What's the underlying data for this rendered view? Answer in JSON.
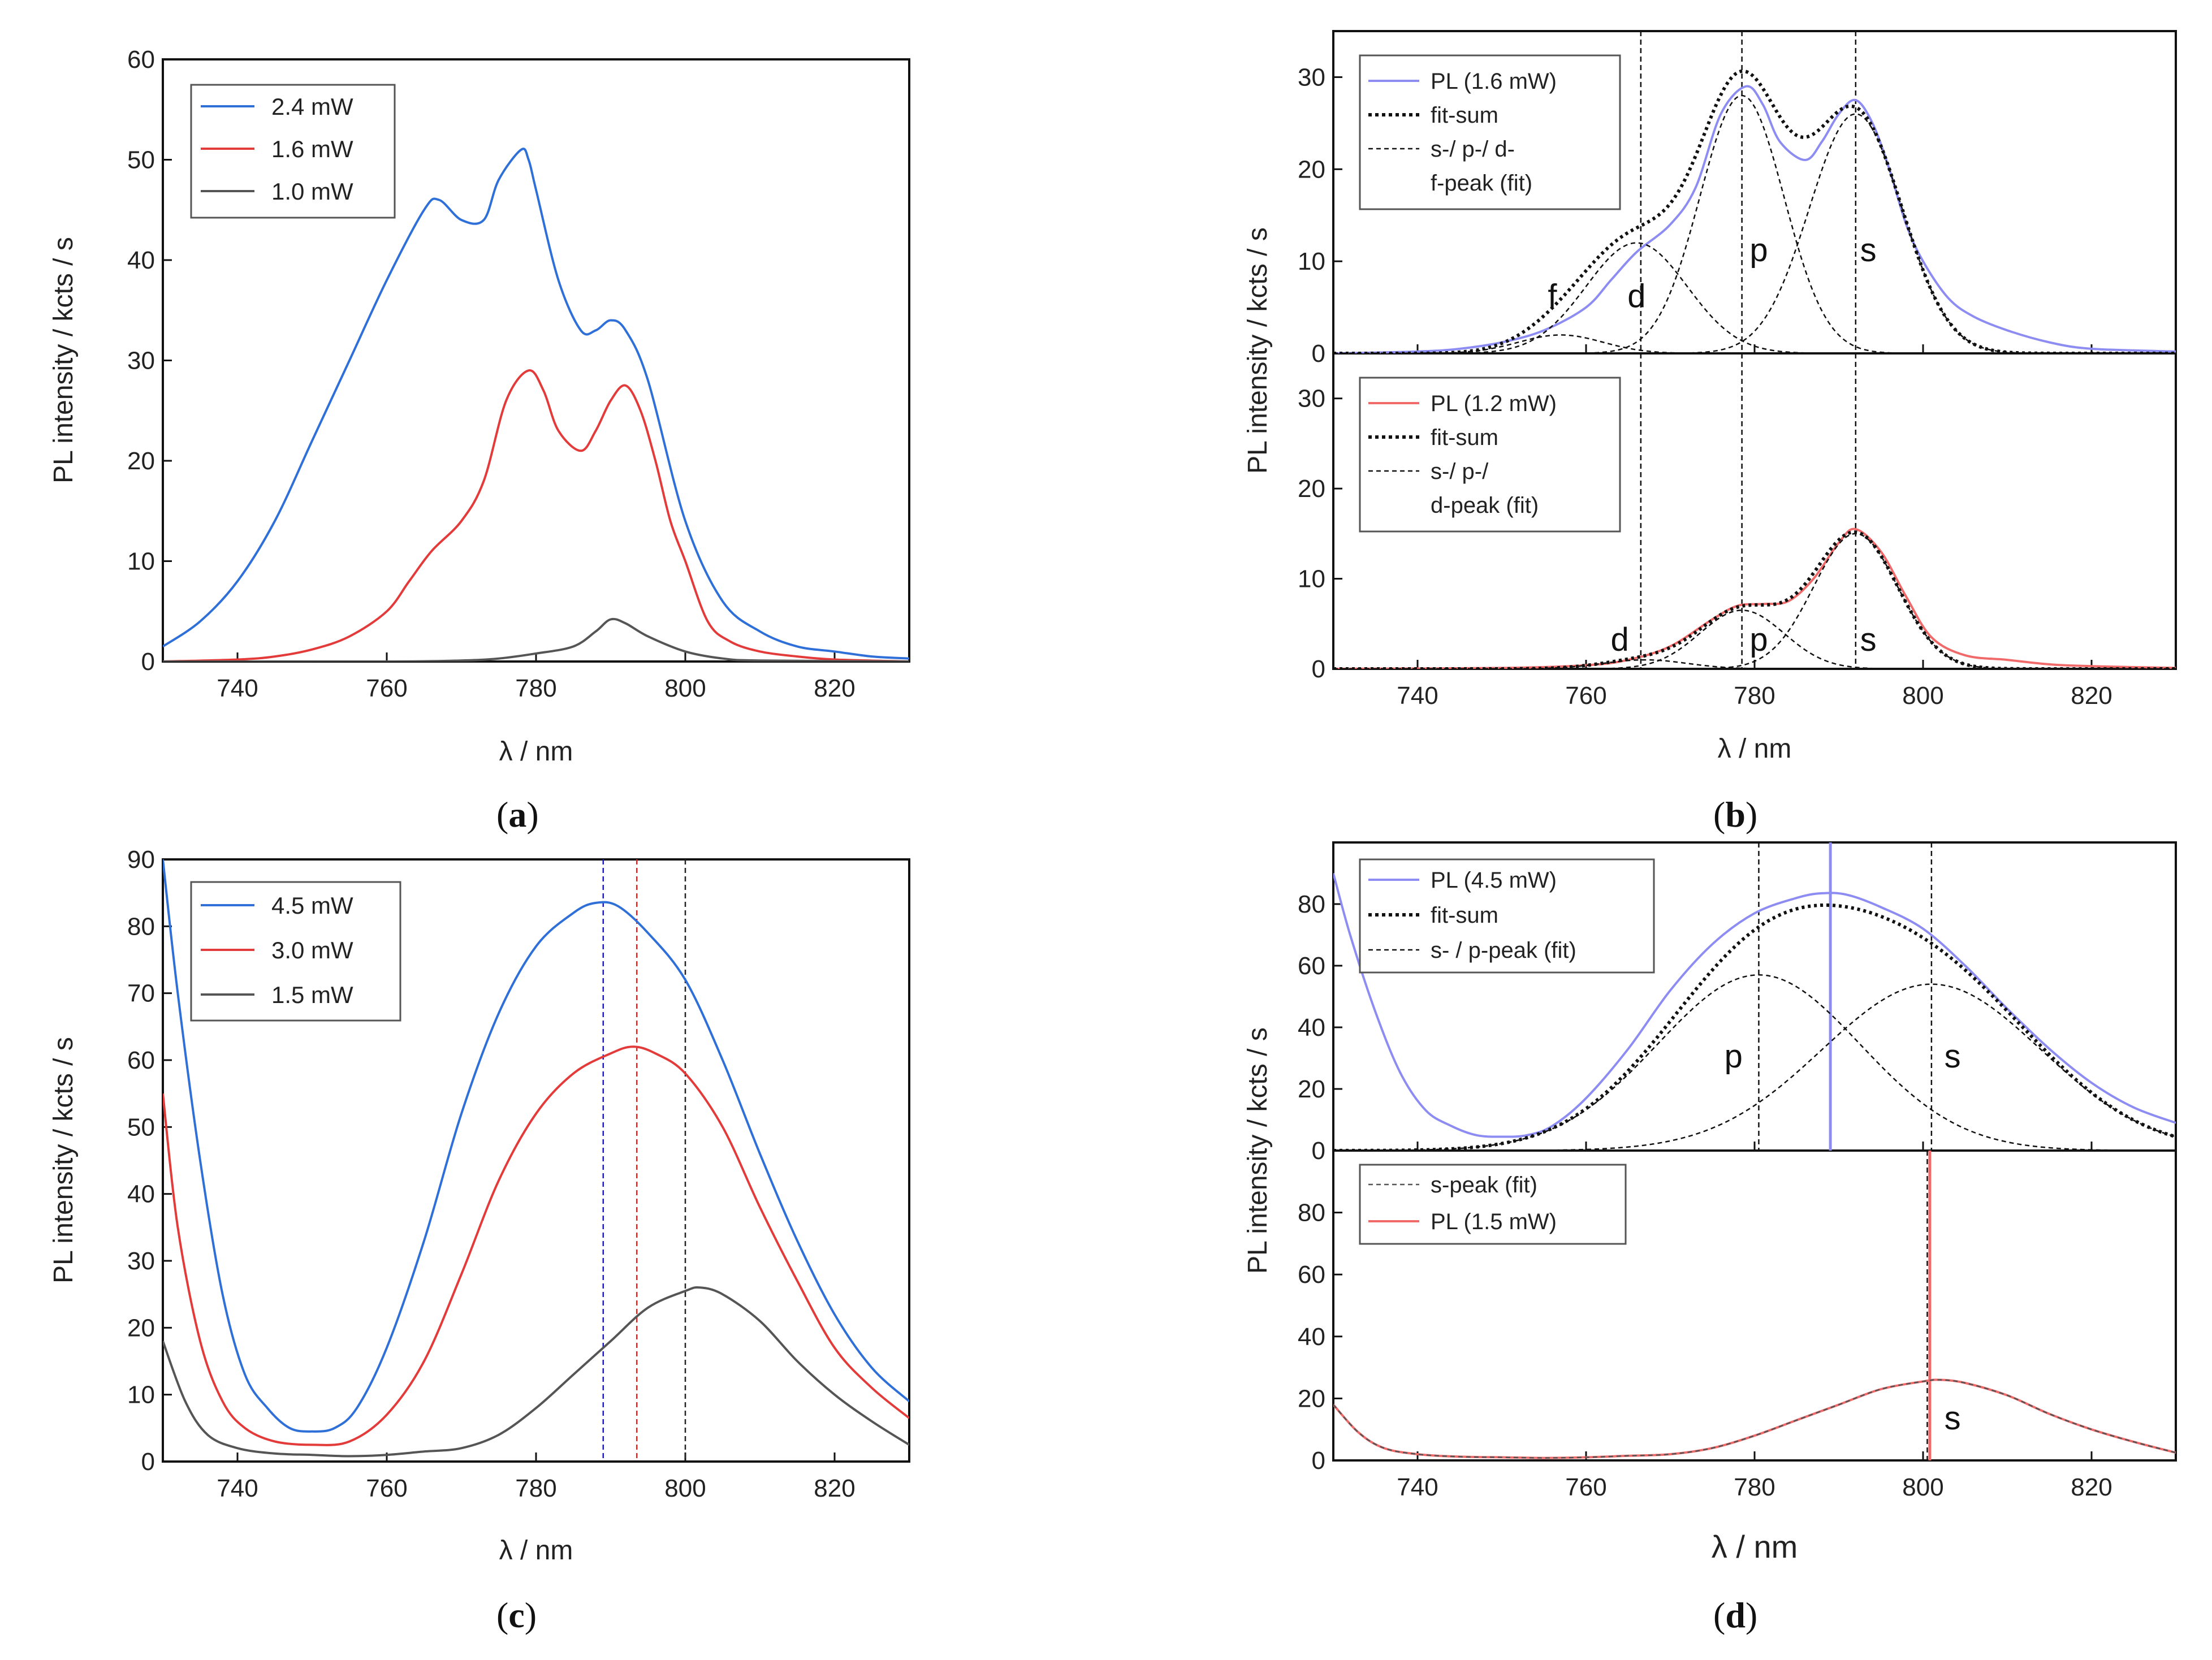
{
  "figure_labels": {
    "a": "a",
    "b": "b",
    "c": "c",
    "d": "d",
    "open_paren": "(",
    "close_paren": ")"
  },
  "colors": {
    "blue": "#2e6fd8",
    "red": "#e33a3a",
    "gray": "#555555",
    "lightblue": "#8c8cf2",
    "lightred": "#f06a6a",
    "dark": "#111111"
  },
  "chart_data": [
    {
      "id": "a",
      "type": "line",
      "xlabel": "λ / nm",
      "ylabel": "PL intensity / kcts / s",
      "xlim": [
        730,
        830
      ],
      "ylim": [
        0,
        60
      ],
      "xticks": [
        "740",
        "760",
        "780",
        "800",
        "820"
      ],
      "yticks": [
        "0",
        "10",
        "20",
        "30",
        "40",
        "50",
        "60"
      ],
      "legend": "top-left",
      "series": [
        {
          "name": "2.4 mW",
          "color": "#2e6fd8",
          "x": [
            730,
            735,
            740,
            745,
            750,
            755,
            760,
            765,
            767,
            770,
            773,
            775,
            778,
            779,
            780,
            783,
            786,
            788,
            790,
            792,
            795,
            800,
            805,
            810,
            815,
            820,
            825,
            830
          ],
          "y": [
            1.5,
            4,
            8,
            14,
            22,
            30,
            38,
            45,
            46,
            44,
            44,
            48,
            51,
            50,
            47,
            38,
            33,
            33,
            34,
            33,
            28,
            14,
            6,
            3,
            1.5,
            1,
            0.5,
            0.3
          ]
        },
        {
          "name": "1.6 mW",
          "color": "#e33a3a",
          "x": [
            730,
            740,
            745,
            750,
            755,
            760,
            763,
            766,
            770,
            773,
            776,
            779,
            781,
            783,
            786,
            788,
            790,
            792,
            794,
            796,
            798,
            800,
            803,
            806,
            810,
            815,
            820,
            830
          ],
          "y": [
            0,
            0.2,
            0.5,
            1.2,
            2.5,
            5,
            8,
            11,
            14,
            18,
            26,
            29,
            27,
            23,
            21,
            23,
            26,
            27.5,
            25,
            20,
            14,
            10,
            4,
            2,
            1,
            0.5,
            0.2,
            0
          ]
        },
        {
          "name": "1.0 mW",
          "color": "#555555",
          "x": [
            730,
            760,
            770,
            775,
            780,
            785,
            788,
            790,
            792,
            795,
            800,
            805,
            810,
            830
          ],
          "y": [
            0,
            0,
            0.1,
            0.3,
            0.8,
            1.5,
            3,
            4.2,
            3.8,
            2.5,
            1,
            0.3,
            0.1,
            0
          ]
        }
      ]
    },
    {
      "id": "b-top",
      "type": "line",
      "ylabel": "PL intensity / kcts / s",
      "xlim": [
        730,
        830
      ],
      "ylim": [
        0,
        35
      ],
      "yticks": [
        "0",
        "10",
        "20",
        "30"
      ],
      "legend": "top-left",
      "legend_entries": [
        "PL (1.6 mW)",
        "fit-sum",
        "s-/ p-/ d-",
        "f-peak (fit)"
      ],
      "vlines": [
        766.5,
        778.5,
        792
      ],
      "annotations": [
        "f",
        "d",
        "p",
        "s"
      ],
      "peaks": [
        {
          "label": "f",
          "center": 757,
          "amp": 2,
          "sigma": 5
        },
        {
          "label": "d",
          "center": 766,
          "amp": 12,
          "sigma": 6
        },
        {
          "label": "p",
          "center": 778.5,
          "amp": 28,
          "sigma": 5
        },
        {
          "label": "s",
          "center": 792,
          "amp": 26,
          "sigma": 5.5
        }
      ],
      "series": [
        {
          "name": "PL (1.6 mW)",
          "color": "#8c8cf2",
          "x": [
            730,
            740,
            745,
            750,
            755,
            760,
            763,
            766,
            770,
            773,
            776,
            779,
            781,
            783,
            786,
            788,
            790,
            792,
            794,
            796,
            798,
            800,
            803,
            806,
            810,
            815,
            820,
            830
          ],
          "y": [
            0,
            0.2,
            0.5,
            1.2,
            2.5,
            5,
            8,
            11,
            14,
            18,
            26,
            29,
            27,
            23,
            21,
            23,
            26,
            27.5,
            25,
            20,
            14,
            10,
            6,
            4,
            2.5,
            1.2,
            0.5,
            0.2
          ]
        }
      ]
    },
    {
      "id": "b-bottom",
      "type": "line",
      "xlabel": "λ / nm",
      "ylabel": "PL intensity / kcts / s",
      "xlim": [
        730,
        830
      ],
      "ylim": [
        0,
        35
      ],
      "xticks": [
        "740",
        "760",
        "780",
        "800",
        "820"
      ],
      "yticks": [
        "0",
        "10",
        "20",
        "30"
      ],
      "legend": "top-left",
      "legend_entries": [
        "PL (1.2 mW)",
        "fit-sum",
        "s-/ p-/",
        "d-peak (fit)"
      ],
      "vlines": [
        766.5,
        778.5,
        792
      ],
      "annotations": [
        "d",
        "p",
        "s"
      ],
      "peaks": [
        {
          "label": "d",
          "center": 767,
          "amp": 1,
          "sigma": 5
        },
        {
          "label": "p",
          "center": 778.5,
          "amp": 6.5,
          "sigma": 5
        },
        {
          "label": "s",
          "center": 792,
          "amp": 15,
          "sigma": 5
        }
      ],
      "series": [
        {
          "name": "PL (1.2 mW)",
          "color": "#f06a6a",
          "x": [
            730,
            750,
            760,
            765,
            770,
            775,
            778,
            781,
            784,
            787,
            790,
            792,
            795,
            798,
            801,
            805,
            810,
            815,
            820,
            830
          ],
          "y": [
            0,
            0.1,
            0.4,
            1,
            2.5,
            5.5,
            7,
            7.2,
            7.5,
            10,
            14,
            15.5,
            13,
            8,
            3.5,
            1.5,
            1,
            0.5,
            0.3,
            0.1
          ]
        }
      ]
    },
    {
      "id": "c",
      "type": "line",
      "xlabel": "λ / nm",
      "ylabel": "PL intensity / kcts / s",
      "xlim": [
        730,
        830
      ],
      "ylim": [
        0,
        90
      ],
      "xticks": [
        "740",
        "760",
        "780",
        "800",
        "820"
      ],
      "yticks": [
        "0",
        "10",
        "20",
        "30",
        "40",
        "50",
        "60",
        "70",
        "80",
        "90"
      ],
      "legend": "top-left",
      "vlines": [
        {
          "x": 789,
          "color": "#1a1ad0"
        },
        {
          "x": 793.5,
          "color": "#e82020"
        },
        {
          "x": 800,
          "color": "#222222"
        }
      ],
      "series": [
        {
          "name": "4.5 mW",
          "color": "#2e6fd8",
          "x": [
            730,
            732,
            735,
            738,
            741,
            744,
            747,
            750,
            753,
            756,
            760,
            765,
            770,
            775,
            780,
            785,
            788,
            791,
            795,
            800,
            805,
            810,
            815,
            820,
            825,
            830
          ],
          "y": [
            90,
            70,
            45,
            25,
            13,
            8,
            5,
            4.5,
            5,
            8,
            17,
            33,
            52,
            67,
            77,
            82,
            83.5,
            83,
            79,
            72,
            60,
            46,
            33,
            22,
            14,
            9
          ]
        },
        {
          "name": "3.0 mW",
          "color": "#e33a3a",
          "x": [
            730,
            732,
            735,
            738,
            741,
            745,
            750,
            755,
            760,
            765,
            770,
            775,
            780,
            785,
            790,
            793,
            796,
            800,
            805,
            810,
            815,
            820,
            825,
            830
          ],
          "y": [
            55,
            35,
            18,
            9,
            5,
            3,
            2.5,
            3,
            7,
            15,
            28,
            42,
            52,
            58,
            61,
            62,
            61,
            58,
            50,
            38,
            27,
            17,
            11,
            6.5
          ]
        },
        {
          "name": "1.5 mW",
          "color": "#555555",
          "x": [
            730,
            733,
            736,
            740,
            745,
            750,
            755,
            760,
            765,
            770,
            775,
            780,
            785,
            790,
            795,
            800,
            802,
            805,
            810,
            815,
            820,
            825,
            830
          ],
          "y": [
            18,
            9,
            4,
            2,
            1.2,
            1,
            0.8,
            1,
            1.5,
            2,
            4,
            8,
            13,
            18,
            23,
            25.5,
            26,
            25,
            21,
            15,
            10,
            6,
            2.5
          ]
        }
      ]
    },
    {
      "id": "d-top",
      "type": "line",
      "ylabel": "PL intensity / kcts / s",
      "xlim": [
        730,
        830
      ],
      "ylim": [
        0,
        100
      ],
      "yticks": [
        "0",
        "20",
        "40",
        "60",
        "80"
      ],
      "legend": "top-left",
      "legend_entries": [
        "PL (4.5 mW)",
        "fit-sum",
        "s- / p-peak (fit)"
      ],
      "vlines": [
        {
          "x": 780.5,
          "style": "dashed"
        },
        {
          "x": 801,
          "style": "dashed"
        },
        {
          "x": 789,
          "style": "solid",
          "color": "#8c8cf2"
        }
      ],
      "annotations": [
        "p",
        "s"
      ],
      "peaks": [
        {
          "label": "p",
          "center": 780.5,
          "amp": 57,
          "sigma": 12
        },
        {
          "label": "s",
          "center": 801,
          "amp": 54,
          "sigma": 13
        }
      ],
      "series": [
        {
          "name": "PL (4.5 mW)",
          "color": "#8c8cf2",
          "x": [
            730,
            732,
            735,
            738,
            741,
            744,
            747,
            750,
            753,
            756,
            760,
            765,
            770,
            775,
            780,
            785,
            788,
            791,
            795,
            800,
            805,
            810,
            815,
            820,
            825,
            830
          ],
          "y": [
            90,
            70,
            45,
            25,
            13,
            8,
            5,
            4.5,
            5,
            8,
            17,
            33,
            52,
            67,
            77,
            82,
            83.5,
            83,
            79,
            72,
            60,
            46,
            33,
            22,
            14,
            9
          ]
        }
      ]
    },
    {
      "id": "d-bottom",
      "type": "line",
      "xlabel": "λ / nm",
      "ylabel": "PL intensity / kcts / s",
      "xlim": [
        730,
        830
      ],
      "ylim": [
        0,
        100
      ],
      "xticks": [
        "740",
        "760",
        "780",
        "800",
        "820"
      ],
      "yticks": [
        "0",
        "20",
        "40",
        "60",
        "80"
      ],
      "legend": "top-left",
      "legend_entries": [
        "s-peak (fit)",
        "PL (1.5 mW)"
      ],
      "vlines": [
        {
          "x": 800.5,
          "style": "dashed"
        },
        {
          "x": 800.8,
          "style": "solid",
          "color": "#f06a6a"
        }
      ],
      "annotations": [
        "s"
      ],
      "series": [
        {
          "name": "PL (1.5 mW)",
          "color": "#f06a6a",
          "x": [
            730,
            733,
            736,
            740,
            745,
            750,
            755,
            760,
            765,
            770,
            775,
            780,
            785,
            790,
            795,
            800,
            802,
            805,
            810,
            815,
            820,
            825,
            830
          ],
          "y": [
            18,
            9,
            4,
            2,
            1.2,
            1,
            0.8,
            1,
            1.5,
            2,
            4,
            8,
            13,
            18,
            23,
            25.5,
            26,
            25,
            21,
            15,
            10,
            6,
            2.5
          ]
        }
      ]
    }
  ]
}
